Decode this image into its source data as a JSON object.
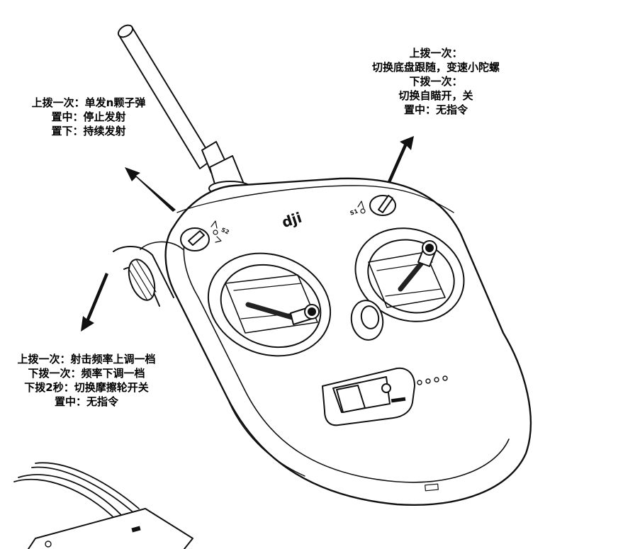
{
  "right_switch_note": [
    "上拨一次：",
    "切换底盘跟随，变速小陀螺",
    "下拨一次：",
    "切换自瞄开，关",
    "置中：无指令"
  ],
  "left_switch_note": [
    "上拨一次：单发n颗子弹",
    "置中：停止发射",
    "置下：持续发射"
  ],
  "dial_note": [
    "上拨一次：射击频率上调一档",
    "下拨一次：频率下调一档",
    "下拨2秒：切换摩擦轮开关",
    "置中：无指令"
  ],
  "device_labels": {
    "logo": "dji",
    "switch_left": "S2",
    "switch_right": "S1"
  },
  "icons": [
    "controller-icon",
    "receiver-icon",
    "arrow-icon"
  ]
}
